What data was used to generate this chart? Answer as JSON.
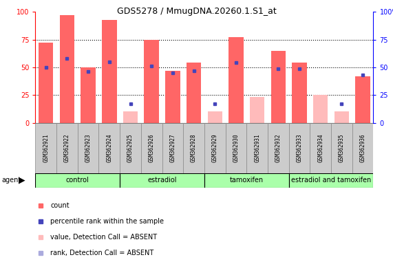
{
  "title": "GDS5278 / MmugDNA.20260.1.S1_at",
  "samples": [
    "GSM362921",
    "GSM362922",
    "GSM362923",
    "GSM362924",
    "GSM362925",
    "GSM362926",
    "GSM362927",
    "GSM362928",
    "GSM362929",
    "GSM362930",
    "GSM362931",
    "GSM362932",
    "GSM362933",
    "GSM362934",
    "GSM362935",
    "GSM362936"
  ],
  "count_values": [
    72,
    97,
    50,
    93,
    10,
    75,
    47,
    54,
    10,
    77,
    23,
    65,
    54,
    25,
    10,
    42
  ],
  "rank_values": [
    50,
    58,
    46,
    55,
    17,
    51,
    45,
    47,
    17,
    54,
    null,
    49,
    49,
    null,
    17,
    43
  ],
  "count_absent": [
    false,
    false,
    false,
    false,
    true,
    false,
    false,
    false,
    true,
    false,
    true,
    false,
    false,
    true,
    true,
    false
  ],
  "rank_absent": [
    false,
    false,
    false,
    false,
    false,
    false,
    false,
    false,
    false,
    false,
    true,
    false,
    false,
    true,
    false,
    false
  ],
  "groups": [
    {
      "label": "control",
      "start": 0,
      "end": 3
    },
    {
      "label": "estradiol",
      "start": 4,
      "end": 7
    },
    {
      "label": "tamoxifen",
      "start": 8,
      "end": 11
    },
    {
      "label": "estradiol and tamoxifen",
      "start": 12,
      "end": 15
    }
  ],
  "group_color": "#aaffaa",
  "color_count_present": "#ff6666",
  "color_count_absent": "#ffbbbb",
  "color_rank_present": "#4444bb",
  "color_rank_absent": "#aaaadd",
  "bar_width": 0.7,
  "ylim": [
    0,
    100
  ],
  "dotted_lines": [
    25,
    50,
    75
  ],
  "legend_items": [
    {
      "color": "#ff6666",
      "label": "count"
    },
    {
      "color": "#4444bb",
      "label": "percentile rank within the sample"
    },
    {
      "color": "#ffbbbb",
      "label": "value, Detection Call = ABSENT"
    },
    {
      "color": "#aaaadd",
      "label": "rank, Detection Call = ABSENT"
    }
  ],
  "sample_box_color": "#cccccc",
  "sample_box_edge": "#888888"
}
